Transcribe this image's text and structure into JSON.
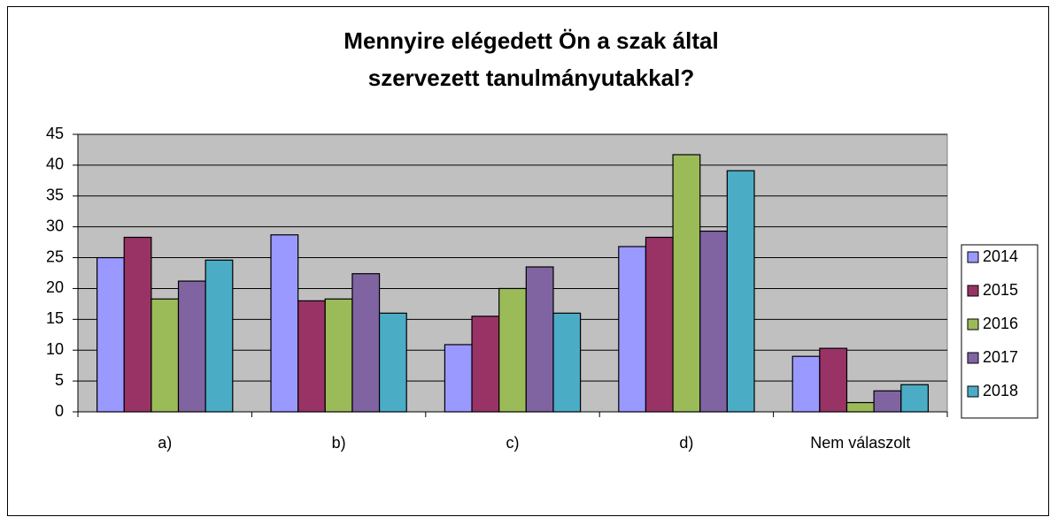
{
  "chart_data": {
    "type": "bar",
    "title": "Mennyire elégedett Ön a szak által szervezett tanulmányutakkal?",
    "categories": [
      "a)",
      "b)",
      "c)",
      "d)",
      "Nem válaszolt"
    ],
    "series": [
      {
        "name": "2014",
        "color": "#9999ff",
        "values": [
          25,
          28.7,
          10.9,
          26.8,
          9
        ]
      },
      {
        "name": "2015",
        "color": "#993366",
        "values": [
          28.3,
          18,
          15.5,
          28.3,
          10.3
        ]
      },
      {
        "name": "2016",
        "color": "#9bbb59",
        "values": [
          18.3,
          18.3,
          20,
          41.7,
          1.5
        ]
      },
      {
        "name": "2017",
        "color": "#8064a2",
        "values": [
          21.2,
          22.4,
          23.5,
          29.3,
          3.4
        ]
      },
      {
        "name": "2018",
        "color": "#4bacc6",
        "values": [
          24.6,
          16,
          16,
          39.1,
          4.4
        ]
      }
    ],
    "ylim": [
      0,
      45
    ],
    "yticks": [
      0,
      5,
      10,
      15,
      20,
      25,
      30,
      35,
      40,
      45
    ],
    "grid": true,
    "legend": "right"
  }
}
